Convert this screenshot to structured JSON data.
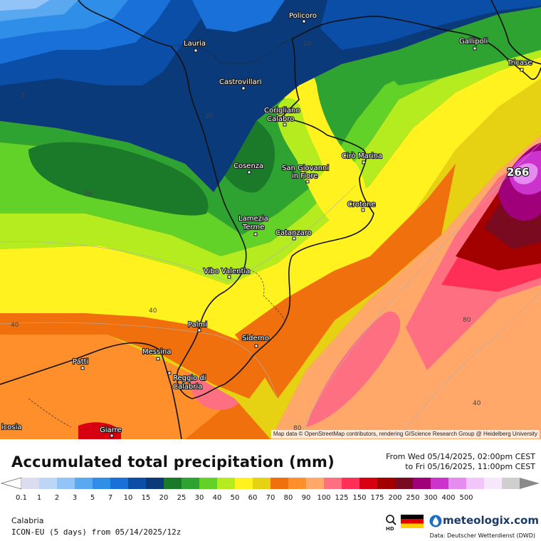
{
  "header": {
    "title": "Accumulated total precipitation (mm)",
    "period_from": "From Wed 05/14/2025, 02:00pm CEST",
    "period_to": "to Fri 05/16/2025, 11:00pm CEST"
  },
  "map": {
    "attribution": "Map data © OpenStreetMap contributors, rendering GIScience Research Group @ Heidelberg University",
    "max_value": "266",
    "cities": [
      "Policoro",
      "Lauria",
      "Gallipoli",
      "Tricase",
      "Castrovillari",
      "Corigliano",
      "Calabro",
      "Cirò Marina",
      "Cosenza",
      "San Giovanni",
      "in Fiore",
      "Crotone",
      "Lamezia",
      "Terme",
      "Catanzaro",
      "Vibo Valentia",
      "Palmi",
      "Siderno",
      "Messina",
      "Patti",
      "Reggio di",
      "Calabria",
      "icosia",
      "Giarre"
    ],
    "contour_labels": [
      "20",
      "5",
      "20",
      "20",
      "40",
      "40",
      "80",
      "40",
      "80"
    ]
  },
  "legend": {
    "tick_labels": [
      "0.1",
      "1",
      "2",
      "3",
      "5",
      "7",
      "10",
      "15",
      "20",
      "25",
      "30",
      "40",
      "50",
      "60",
      "70",
      "80",
      "90",
      "100",
      "125",
      "150",
      "175",
      "200",
      "250",
      "300",
      "400",
      "500"
    ],
    "colors": [
      "#dcdcf0",
      "#bcd6f8",
      "#92c4f7",
      "#5aa8f0",
      "#2e8ee8",
      "#1870d8",
      "#0a4ea8",
      "#0a3a7a",
      "#1b7a2a",
      "#2fa332",
      "#62d128",
      "#b4ec1f",
      "#fff21e",
      "#e6d212",
      "#f0700e",
      "#ff8f2a",
      "#ffa86a",
      "#ff6f82",
      "#ff2f58",
      "#d80010",
      "#a30000",
      "#7a0a20",
      "#a0007a",
      "#cc33cc",
      "#e68cf0",
      "#f2c6fa",
      "#f6e8fa",
      "#cfcfcf"
    ],
    "scale_colors": {
      "low_arrow": "#ffffff",
      "high_arrow": "#8a8a8a"
    }
  },
  "footer": {
    "region": "Calabria",
    "model": "ICON-EU (5 days) from 05/14/2025/12z",
    "hd_label": "HD",
    "brand": "meteologix.com",
    "source": "Data: Deutscher Wetterdienst (DWD)"
  }
}
